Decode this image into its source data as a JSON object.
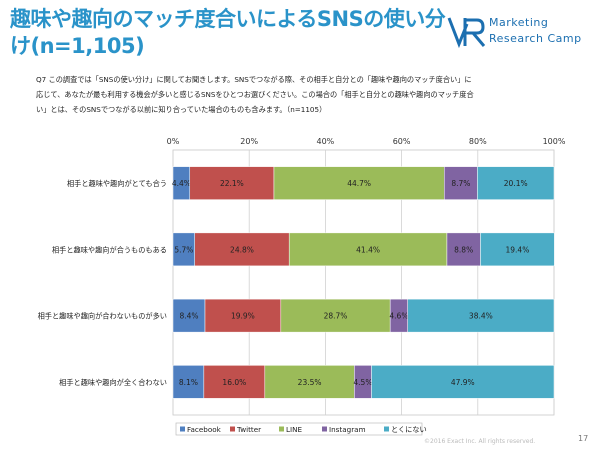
{
  "header": {
    "title": "趣味や趣向のマッチ度合いによるSNSの使い分け(n=1,105)",
    "logo_line1": "Marketing",
    "logo_line2": "Research Camp"
  },
  "question_text": "Q7 この調査では「SNSの使い分け」に関してお聞きします。SNSでつながる際、その相手と自分との「趣味や趣向のマッチ度合い」に応じて、あなたが最も利用する機会が多いと感じるSNSをひとつお選びください。この場合の「相手と自分との趣味や趣向のマッチ度合い」とは、そのSNSでつながる以前に知り合っていた場合のものも含みます。（n=1105）",
  "footer": {
    "copyright": "©2016 Exact Inc. All rights reserved.",
    "page_number": "17"
  },
  "colors": {
    "Facebook": "#4f7fc0",
    "Twitter": "#c0504d",
    "LINE": "#9bbb59",
    "Instagram": "#8064a2",
    "とくにない": "#4bacc6"
  },
  "chart_data": {
    "type": "bar",
    "orientation": "horizontal",
    "stacked": true,
    "categories": [
      "相手と趣味や趣向がとても合う",
      "相手と趣味や趣向が合うものもある",
      "相手と趣味や趣向が合わないものが多い",
      "相手と趣味や趣向が全く合わない"
    ],
    "series": [
      {
        "name": "Facebook",
        "values": [
          4.4,
          5.7,
          8.4,
          8.1
        ]
      },
      {
        "name": "Twitter",
        "values": [
          22.1,
          24.8,
          19.9,
          16.0
        ]
      },
      {
        "name": "LINE",
        "values": [
          44.7,
          41.4,
          28.7,
          23.5
        ]
      },
      {
        "name": "Instagram",
        "values": [
          8.7,
          8.8,
          4.6,
          4.5
        ]
      },
      {
        "name": "とくにない",
        "values": [
          20.1,
          19.4,
          38.4,
          47.9
        ]
      }
    ],
    "xlim": [
      0,
      100
    ],
    "x_ticks": [
      "0%",
      "20%",
      "40%",
      "60%",
      "80%",
      "100%"
    ],
    "value_suffix": "%",
    "legend_position": "bottom",
    "grid": "vertical"
  }
}
